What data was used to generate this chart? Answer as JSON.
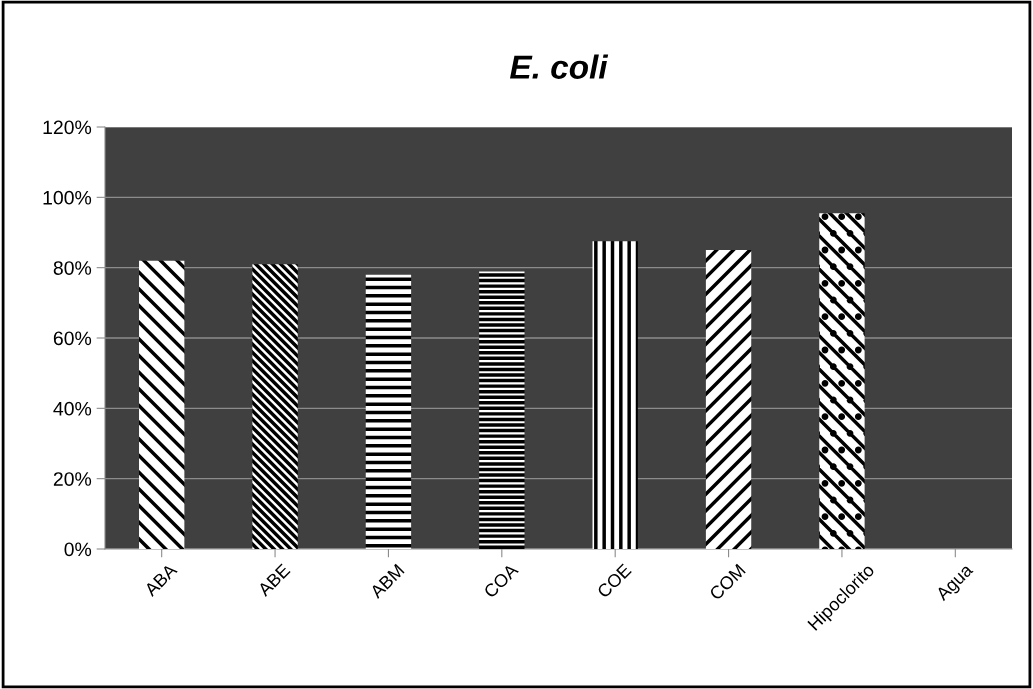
{
  "chart_data": {
    "type": "bar",
    "title": "E. coli",
    "categories": [
      "ABA",
      "ABE",
      "ABM",
      "COA",
      "COE",
      "COM",
      "Hipoclorito",
      "Agua"
    ],
    "values": [
      82,
      81,
      78,
      79,
      87.5,
      85,
      95.5,
      0
    ],
    "colors": [
      "#ffffff",
      "#ffffff",
      "#ffffff",
      "#ffffff",
      "#ffffff",
      "#ffffff",
      "#ffffff",
      "#ffffff"
    ],
    "ylim": [
      0,
      120
    ],
    "yticks": [
      {
        "value": 0,
        "label": "0%"
      },
      {
        "value": 20,
        "label": "20%"
      },
      {
        "value": 40,
        "label": "40%"
      },
      {
        "value": 60,
        "label": "60%"
      },
      {
        "value": 80,
        "label": "80%"
      },
      {
        "value": 100,
        "label": "100%"
      },
      {
        "value": 120,
        "label": "120%"
      }
    ],
    "grid": "y",
    "legend": false
  }
}
